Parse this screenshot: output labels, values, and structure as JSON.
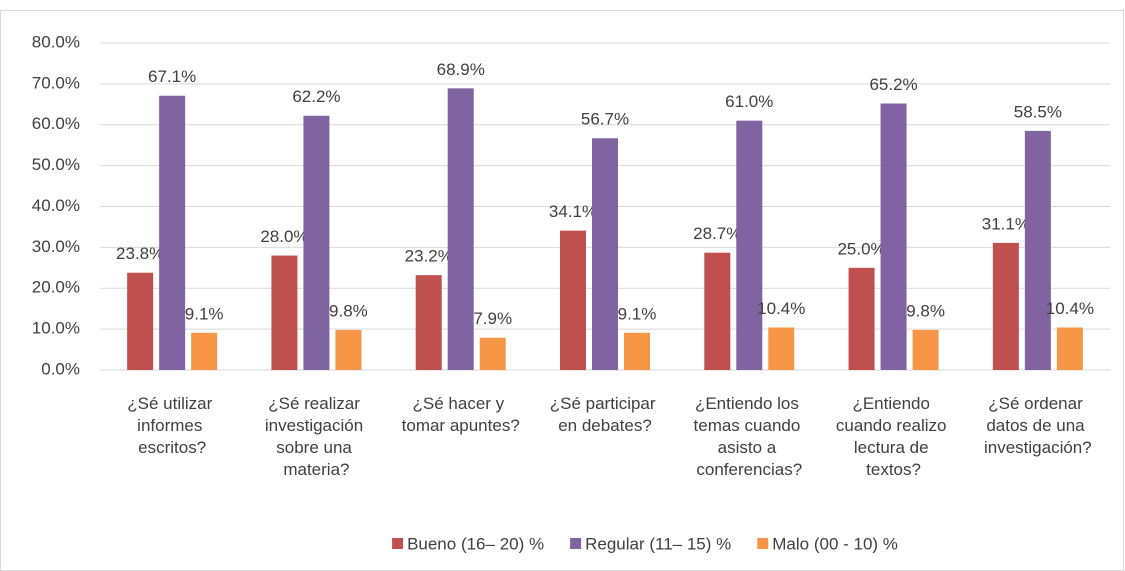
{
  "chart_data": {
    "type": "bar",
    "categories": [
      "¿Sé utilizar informes escritos?",
      "¿Sé realizar investigación sobre una materia?",
      "¿Sé hacer y tomar apuntes?",
      "¿Sé participar en debates?",
      "¿Entiendo los temas cuando asisto a conferencias?",
      "¿Entiendo cuando realizo lectura de textos?",
      "¿Sé ordenar datos de una investigación?"
    ],
    "series": [
      {
        "name": "Bueno (16– 20) %",
        "color": "#c0504d",
        "values": [
          23.8,
          28.0,
          23.2,
          34.1,
          28.7,
          25.0,
          31.1
        ],
        "value_labels": [
          "23.8%",
          "28.0%",
          "23.2%",
          "34.1%",
          "28.7%",
          "25.0%",
          "31.1%"
        ]
      },
      {
        "name": "Regular (11– 15) %",
        "color": "#8064a2",
        "values": [
          67.1,
          62.2,
          68.9,
          56.7,
          61.0,
          65.2,
          58.5
        ],
        "value_labels": [
          "67.1%",
          "62.2%",
          "68.9%",
          "56.7%",
          "61.0%",
          "65.2%",
          "58.5%"
        ]
      },
      {
        "name": "Malo (00 - 10) %",
        "color": "#f79646",
        "values": [
          9.1,
          9.8,
          7.9,
          9.1,
          10.4,
          9.8,
          10.4
        ],
        "value_labels": [
          "9.1%",
          "9.8%",
          "7.9%",
          "9.1%",
          "10.4%",
          "9.8%",
          "10.4%"
        ]
      }
    ],
    "ylim": [
      0,
      80
    ],
    "yticks": [
      {
        "value": 0,
        "label": "0.0%"
      },
      {
        "value": 10,
        "label": "10.0%"
      },
      {
        "value": 20,
        "label": "20.0%"
      },
      {
        "value": 30,
        "label": "30.0%"
      },
      {
        "value": 40,
        "label": "40.0%"
      },
      {
        "value": 50,
        "label": "50.0%"
      },
      {
        "value": 60,
        "label": "60.0%"
      },
      {
        "value": 70,
        "label": "70.0%"
      },
      {
        "value": 80,
        "label": "80.0%"
      }
    ],
    "grid": true,
    "legend": "bottom"
  }
}
